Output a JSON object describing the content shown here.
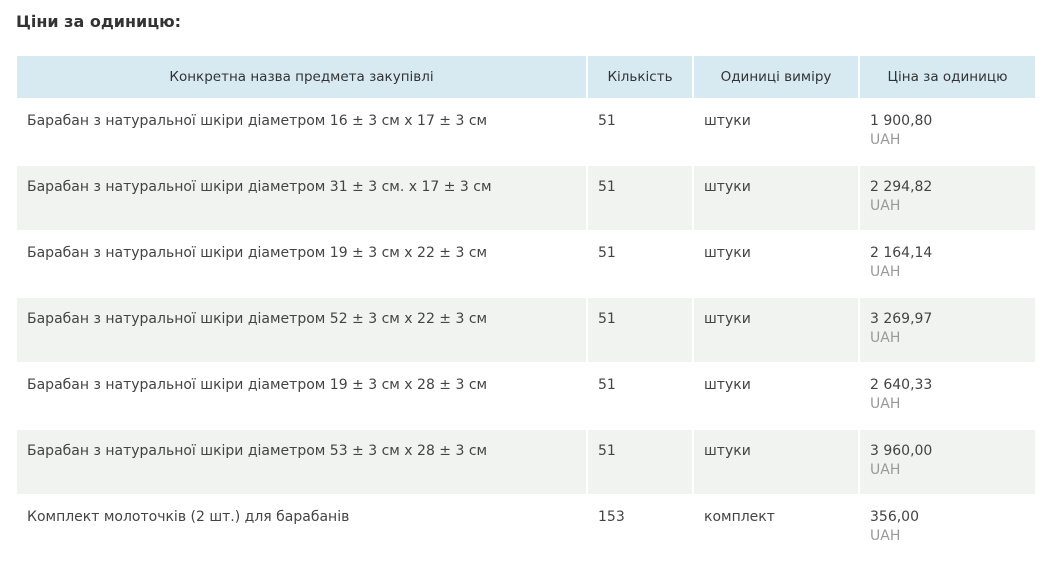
{
  "title": "Ціни за одиницю:",
  "headers": [
    "Конкретна назва предмета закупівлі",
    "Кількість",
    "Одиниці виміру",
    "Ціна за одиницю"
  ],
  "rows": [
    {
      "name": "Барабан з натуральної шкіри діаметром 16 ± 3 см х 17 ± 3 см",
      "qty": "51",
      "unit": "штуки",
      "price": "1 900,80",
      "currency": "UAH"
    },
    {
      "name": "Барабан з натуральної шкіри діаметром 31 ± 3 см. х 17 ± 3 см",
      "qty": "51",
      "unit": "штуки",
      "price": "2 294,82",
      "currency": "UAH"
    },
    {
      "name": "Барабан з натуральної шкіри діаметром 19 ± 3 см х 22 ± 3 см",
      "qty": "51",
      "unit": "штуки",
      "price": "2 164,14",
      "currency": "UAH"
    },
    {
      "name": "Барабан з натуральної шкіри діаметром 52 ± 3 см х 22 ± 3 см",
      "qty": "51",
      "unit": "штуки",
      "price": "3 269,97",
      "currency": "UAH"
    },
    {
      "name": "Барабан з натуральної шкіри діаметром 19 ± 3 см х 28 ± 3 см",
      "qty": "51",
      "unit": "штуки",
      "price": "2 640,33",
      "currency": "UAH"
    },
    {
      "name": "Барабан з натуральної шкіри діаметром 53 ± 3 см х 28 ± 3 см",
      "qty": "51",
      "unit": "штуки",
      "price": "3 960,00",
      "currency": "UAH"
    },
    {
      "name": "Комплект молоточків (2 шт.) для барабанів",
      "qty": "153",
      "unit": "комплект",
      "price": "356,00",
      "currency": "UAH"
    }
  ]
}
